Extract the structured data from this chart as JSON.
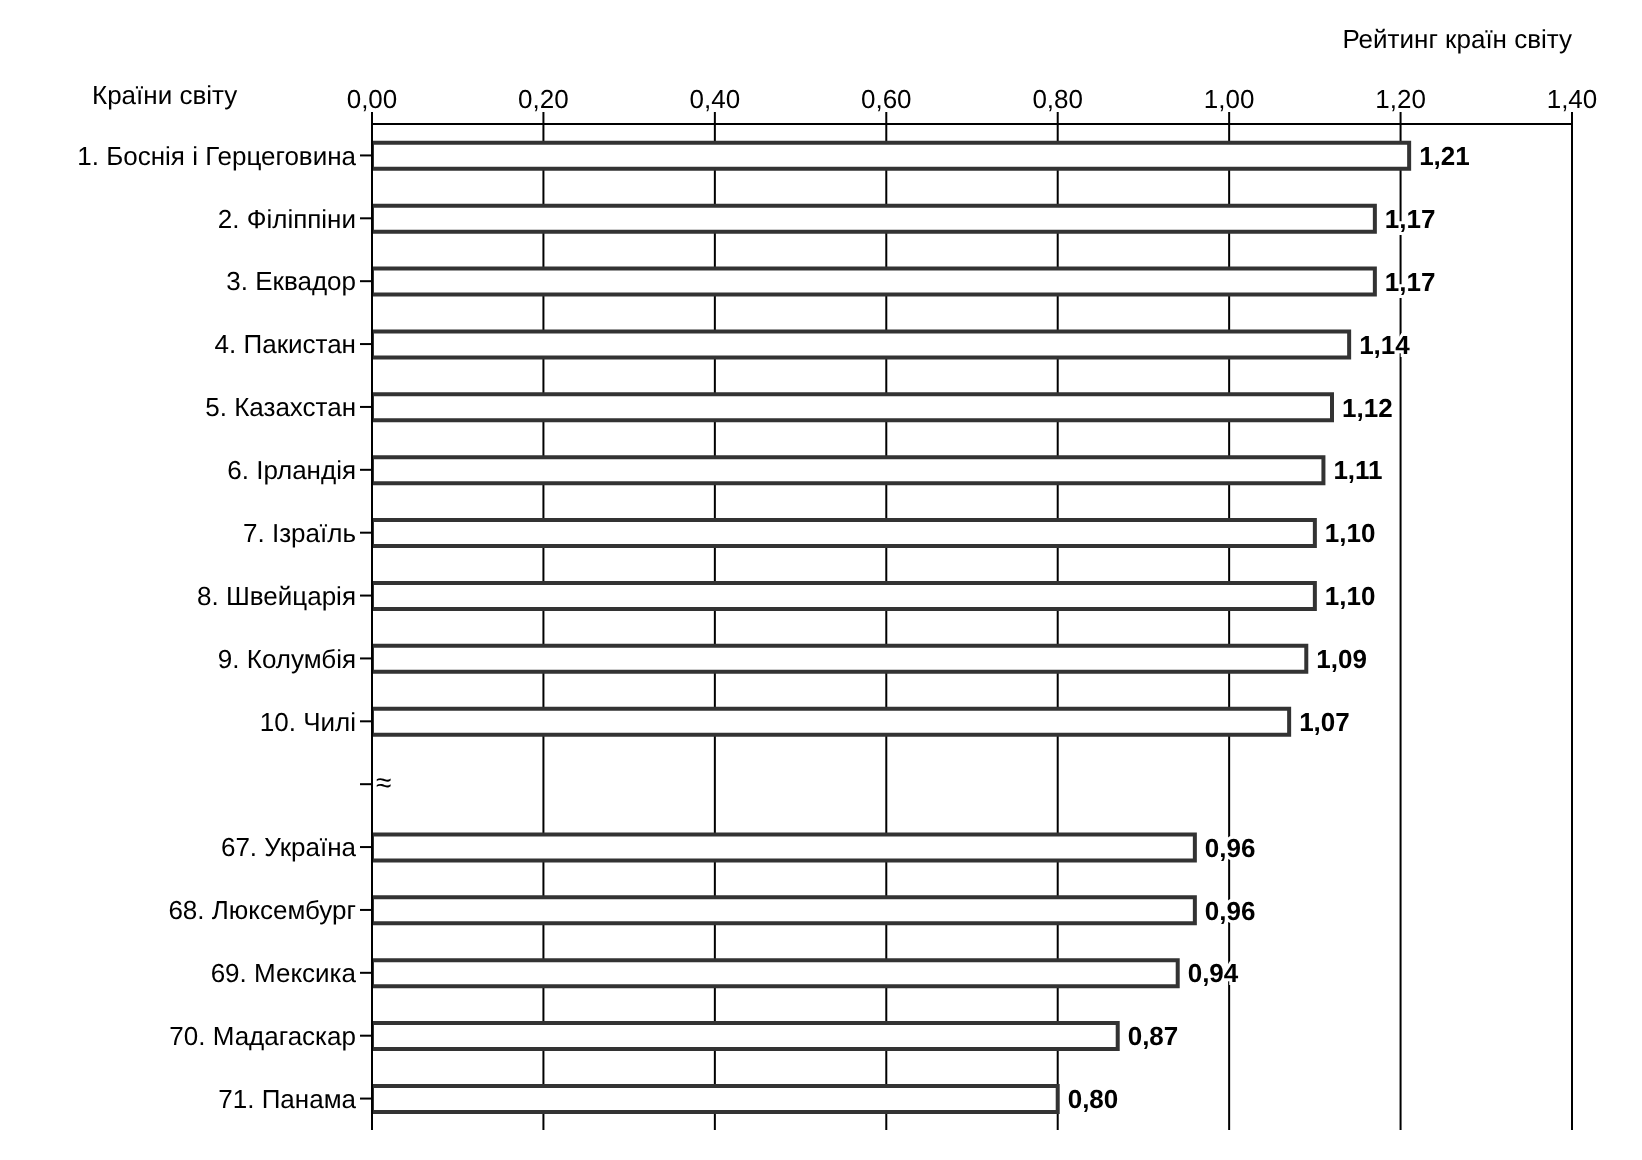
{
  "chart_data": {
    "type": "bar",
    "orientation": "horizontal",
    "xlabel": "Рейтинг країн світу",
    "ylabel": "Країни світу",
    "categories": [
      "1. Боснія і Герцеговина",
      "2. Філіппіни",
      "3. Еквадор",
      "4. Пакистан",
      "5. Казахстан",
      "6. Ірландія",
      "7. Ізраїль",
      "8. Швейцарія",
      "9. Колумбія",
      "10. Чилі",
      null,
      "67. Україна",
      "68. Люксембург",
      "69. Мексика",
      "70. Мадагаскар",
      "71. Панама"
    ],
    "values": [
      1.21,
      1.17,
      1.17,
      1.14,
      1.12,
      1.11,
      1.1,
      1.1,
      1.09,
      1.07,
      null,
      0.96,
      0.96,
      0.94,
      0.87,
      0.8
    ],
    "value_labels": [
      "1,21",
      "1,17",
      "1,17",
      "1,14",
      "1,12",
      "1,11",
      "1,10",
      "1,10",
      "1,09",
      "1,07",
      null,
      "0,96",
      "0,96",
      "0,94",
      "0,87",
      "0,80"
    ],
    "color": "#333333",
    "xlim": [
      0,
      1.4
    ],
    "xticks": [
      {
        "value": 0,
        "label": "0,00"
      },
      {
        "value": 0.2,
        "label": "0,20"
      },
      {
        "value": 0.4,
        "label": "0,40"
      },
      {
        "value": 0.6,
        "label": "0,60"
      },
      {
        "value": 0.8,
        "label": "0,80"
      },
      {
        "value": 1.0,
        "label": "1,00"
      },
      {
        "value": 1.2,
        "label": "1,20"
      },
      {
        "value": 1.4,
        "label": "1,40"
      }
    ],
    "grid": "x",
    "annotations": [
      "≈"
    ]
  }
}
